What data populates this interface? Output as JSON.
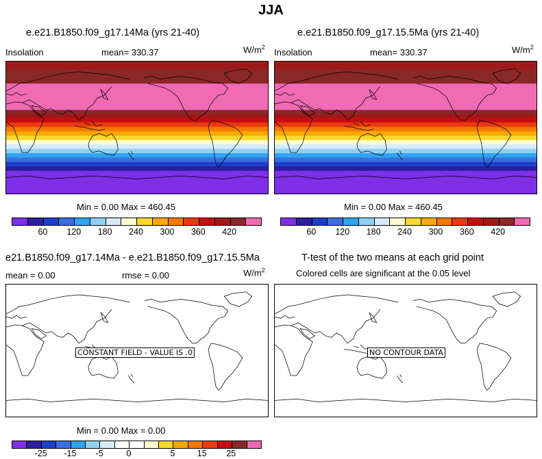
{
  "page_title": "JJA",
  "panels": [
    {
      "title": "e.e21.B1850.f09_g17.14Ma (yrs 21-40)",
      "left_label": "Insolation",
      "mean_text": "mean= 330.37",
      "unit_base": "W/m",
      "unit_exp": "2",
      "minmax_text": "Min =   0.00 Max = 460.45"
    },
    {
      "title": "e.e21.B1850.f09_g17.15.5Ma (yrs 21-40)",
      "left_label": "Insolation",
      "mean_text": "mean= 330.37",
      "unit_base": "W/m",
      "unit_exp": "2",
      "minmax_text": "Min =   0.00 Max = 460.45"
    },
    {
      "title": "e21.B1850.f09_g17.14Ma - e.e21.B1850.f09_g17.15.5Ma",
      "mean_text": "mean =   0.00",
      "rmse_text": "rmse =   0.00",
      "unit_base": "W/m",
      "unit_exp": "2",
      "box_text": "CONSTANT FIELD - VALUE IS .0",
      "minmax_text": "Min =   0.00 Max =   0.00"
    },
    {
      "title": "T-test of the two means at each grid point",
      "subtitle": "Colored cells are significant at the 0.05 level",
      "box_text": "NO CONTOUR DATA"
    }
  ],
  "chart_data": [
    {
      "type": "heatmap",
      "variable": "Insolation",
      "units": "W/m2",
      "mean": 330.37,
      "min": 0.0,
      "max": 460.45,
      "colorbar_ticks": [
        "60",
        "120",
        "180",
        "240",
        "300",
        "360",
        "420"
      ],
      "colorbar_colors": [
        "#7f2fe8",
        "#2b1f9e",
        "#1f3fc8",
        "#3a6fe0",
        "#2fa4f0",
        "#8fd0f5",
        "#d4ecfa",
        "#fffcd0",
        "#f8d82a",
        "#f8a800",
        "#f57800",
        "#e83a10",
        "#c80c10",
        "#a01818",
        "#8a2828",
        "#f06ab4"
      ],
      "zonal_bands_north_to_south": [
        {
          "color": "#a01818",
          "lat_from": 90,
          "lat_to": 80
        },
        {
          "color": "#8a2828",
          "lat_from": 80,
          "lat_to": 60
        },
        {
          "color": "#f06ab4",
          "lat_from": 60,
          "lat_to": 24
        },
        {
          "color": "#8a2828",
          "lat_from": 24,
          "lat_to": 18
        },
        {
          "color": "#a01818",
          "lat_from": 18,
          "lat_to": 13
        },
        {
          "color": "#c80c10",
          "lat_from": 13,
          "lat_to": 7
        },
        {
          "color": "#e83a10",
          "lat_from": 7,
          "lat_to": 1
        },
        {
          "color": "#f57800",
          "lat_from": 1,
          "lat_to": -5
        },
        {
          "color": "#f8a800",
          "lat_from": -5,
          "lat_to": -11
        },
        {
          "color": "#f8d82a",
          "lat_from": -11,
          "lat_to": -17
        },
        {
          "color": "#fffcd0",
          "lat_from": -17,
          "lat_to": -23
        },
        {
          "color": "#d4ecfa",
          "lat_from": -23,
          "lat_to": -29
        },
        {
          "color": "#8fd0f5",
          "lat_from": -29,
          "lat_to": -35
        },
        {
          "color": "#2fa4f0",
          "lat_from": -35,
          "lat_to": -41
        },
        {
          "color": "#3a6fe0",
          "lat_from": -41,
          "lat_to": -47
        },
        {
          "color": "#1f3fc8",
          "lat_from": -47,
          "lat_to": -53
        },
        {
          "color": "#2b1f9e",
          "lat_from": -53,
          "lat_to": -59
        },
        {
          "color": "#7f2fe8",
          "lat_from": -59,
          "lat_to": -90
        }
      ]
    },
    {
      "type": "heatmap",
      "variable": "Insolation",
      "units": "W/m2",
      "mean": 330.37,
      "min": 0.0,
      "max": 460.45,
      "same_as_panel": 0
    },
    {
      "type": "heatmap",
      "variable": "difference",
      "mean": 0.0,
      "rmse": 0.0,
      "min": 0.0,
      "max": 0.0,
      "constant_value": 0,
      "colorbar_ticks": [
        "-25",
        "-15",
        "-5",
        "0",
        "5",
        "15",
        "25"
      ],
      "colorbar_colors": [
        "#7f2fe8",
        "#2b1f9e",
        "#1f3fc8",
        "#3a6fe0",
        "#2fa4f0",
        "#8fd0f5",
        "#d4ecfa",
        "#ffffff",
        "#ffffff",
        "#fffcd0",
        "#f8d82a",
        "#f8a800",
        "#f57800",
        "#e83a10",
        "#c80c10",
        "#8a2828",
        "#f06ab4"
      ]
    },
    {
      "type": "heatmap",
      "variable": "t-test significance",
      "significance_level": 0.05,
      "has_data": false
    }
  ]
}
